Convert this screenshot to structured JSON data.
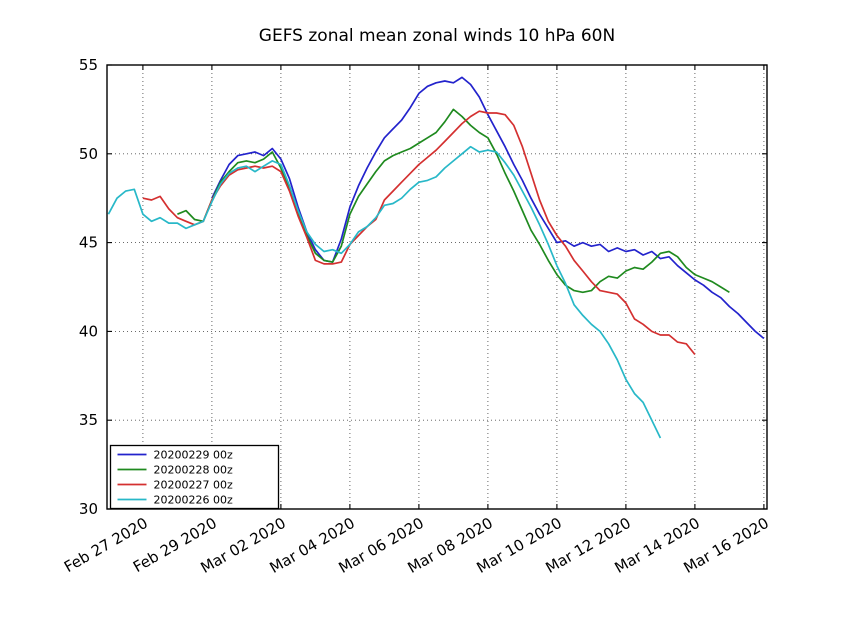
{
  "chart_data": {
    "type": "line",
    "title": "GEFS zonal mean zonal winds 10 hPa 60N",
    "xlabel": "",
    "ylabel": "",
    "ylim": [
      30,
      55
    ],
    "y_ticks": [
      30,
      35,
      40,
      45,
      50,
      55
    ],
    "y_grid_ticks": [
      35,
      40,
      45,
      50
    ],
    "x_tick_labels": [
      "Feb 27 2020",
      "Feb 29 2020",
      "Mar 02 2020",
      "Mar 04 2020",
      "Mar 06 2020",
      "Mar 08 2020",
      "Mar 10 2020",
      "Mar 12 2020",
      "Mar 14 2020",
      "Mar 16 2020"
    ],
    "x_tick_days": [
      1,
      3,
      5,
      7,
      9,
      11,
      13,
      15,
      17,
      19
    ],
    "xlim_days": [
      -0.04,
      19.09
    ],
    "x_axis_origin": "days since 2020-02-26 00z",
    "grid": true,
    "grid_style": "dotted",
    "legend_position": "lower left",
    "background_color": "#ffffff",
    "frame_color": "#000000",
    "series": [
      {
        "name": "20200229 00z",
        "color": "#2323cc",
        "start_day": 3,
        "step_days": 0.25,
        "values": [
          47.5,
          48.5,
          49.4,
          49.9,
          50.0,
          50.1,
          49.9,
          50.3,
          49.7,
          48.6,
          47.0,
          45.6,
          44.6,
          44.0,
          43.9,
          45.2,
          47.0,
          48.2,
          49.2,
          50.1,
          50.9,
          51.4,
          51.9,
          52.6,
          53.4,
          53.8,
          54.0,
          54.1,
          54.0,
          54.3,
          53.9,
          53.2,
          52.2,
          51.3,
          50.4,
          49.4,
          48.5,
          47.5,
          46.6,
          45.8,
          45.0,
          45.1,
          44.8,
          45.0,
          44.8,
          44.9,
          44.5,
          44.7,
          44.5,
          44.6,
          44.3,
          44.5,
          44.1,
          44.2,
          43.7,
          43.3,
          42.9,
          42.6,
          42.2,
          41.9,
          41.4,
          41.0,
          40.5,
          40.0,
          39.6
        ]
      },
      {
        "name": "20200228 00z",
        "color": "#1f8a1f",
        "start_day": 2,
        "step_days": 0.25,
        "values": [
          46.6,
          46.8,
          46.3,
          46.2,
          47.4,
          48.4,
          49.0,
          49.5,
          49.6,
          49.5,
          49.7,
          50.1,
          49.2,
          48.1,
          46.7,
          45.4,
          44.4,
          44.0,
          43.9,
          44.8,
          46.6,
          47.6,
          48.3,
          49.0,
          49.6,
          49.9,
          50.1,
          50.3,
          50.6,
          50.9,
          51.2,
          51.8,
          52.5,
          52.1,
          51.6,
          51.2,
          50.9,
          50.0,
          48.9,
          47.9,
          46.8,
          45.7,
          44.9,
          44.0,
          43.2,
          42.6,
          42.3,
          42.2,
          42.3,
          42.8,
          43.1,
          43.0,
          43.4,
          43.6,
          43.5,
          43.9,
          44.4,
          44.5,
          44.2,
          43.6,
          43.2,
          43.0,
          42.8,
          42.5,
          42.2
        ]
      },
      {
        "name": "20200227 00z",
        "color": "#d43030",
        "start_day": 1,
        "step_days": 0.25,
        "values": [
          47.5,
          47.4,
          47.6,
          46.9,
          46.4,
          46.2,
          46.0,
          46.2,
          47.4,
          48.2,
          48.8,
          49.1,
          49.2,
          49.3,
          49.2,
          49.3,
          49.0,
          47.9,
          46.5,
          45.3,
          44.0,
          43.8,
          43.8,
          43.9,
          44.9,
          45.4,
          45.9,
          46.3,
          47.4,
          47.9,
          48.4,
          48.9,
          49.4,
          49.8,
          50.2,
          50.7,
          51.2,
          51.7,
          52.1,
          52.4,
          52.3,
          52.3,
          52.2,
          51.6,
          50.4,
          48.9,
          47.4,
          46.2,
          45.4,
          44.8,
          44.0,
          43.4,
          42.8,
          42.3,
          42.2,
          42.1,
          41.6,
          40.7,
          40.4,
          40.0,
          39.8,
          39.8,
          39.4,
          39.3,
          38.7
        ]
      },
      {
        "name": "20200226 00z",
        "color": "#28b8c8",
        "start_day": 0,
        "step_days": 0.25,
        "values": [
          46.6,
          47.5,
          47.9,
          48.0,
          46.6,
          46.2,
          46.4,
          46.1,
          46.1,
          45.8,
          46.0,
          46.2,
          47.3,
          48.3,
          48.9,
          49.2,
          49.3,
          49.0,
          49.3,
          49.6,
          49.4,
          48.2,
          46.8,
          45.6,
          44.9,
          44.5,
          44.6,
          44.4,
          44.9,
          45.6,
          45.9,
          46.4,
          47.1,
          47.2,
          47.5,
          48.0,
          48.4,
          48.5,
          48.7,
          49.2,
          49.6,
          50.0,
          50.4,
          50.1,
          50.2,
          50.1,
          49.5,
          48.8,
          47.9,
          47.0,
          46.0,
          44.9,
          43.7,
          42.7,
          41.5,
          40.9,
          40.4,
          40.0,
          39.3,
          38.4,
          37.3,
          36.5,
          36.0,
          35.0,
          34.0
        ]
      }
    ]
  }
}
